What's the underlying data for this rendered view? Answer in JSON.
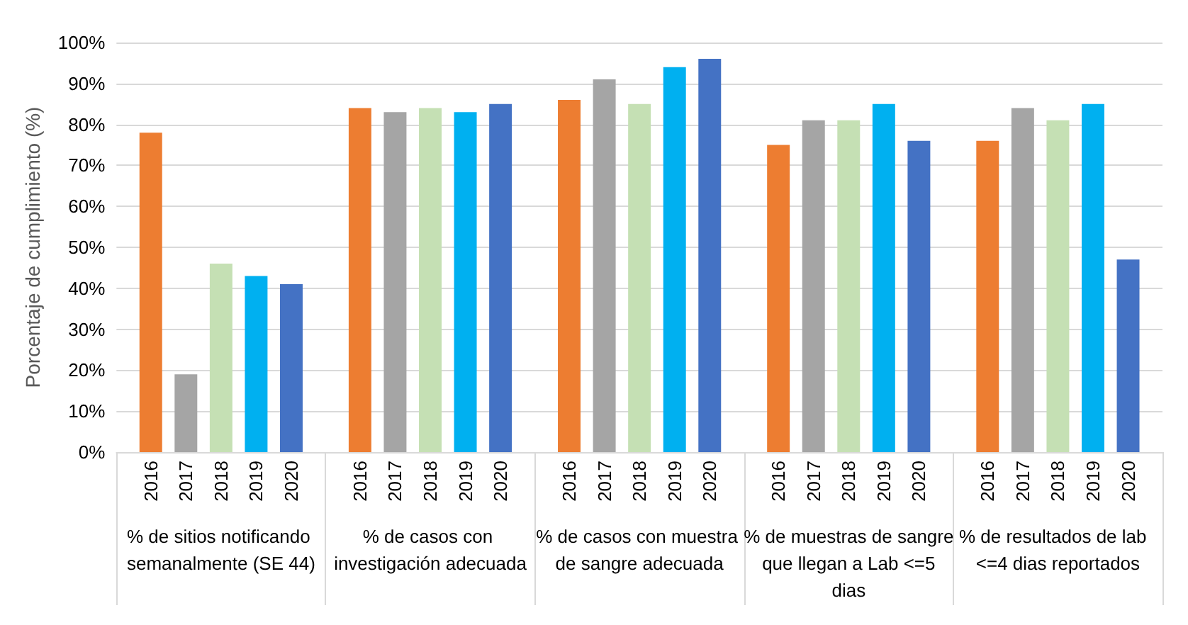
{
  "chart_data": {
    "type": "bar",
    "ylabel": "Porcentaje de cumplimiento (%)",
    "categories": [
      "% de sitios notificando semanalmente (SE 44)",
      "% de casos con investigación adecuada",
      "% de casos con muestra de sangre adecuada",
      "% de muestras de sangre que llegan a Lab <=5 dias",
      "% de resultados de lab  <=4 dias reportados"
    ],
    "series": [
      {
        "name": "2016",
        "color": "#ed7d31",
        "values": [
          78,
          84,
          86,
          75,
          76
        ]
      },
      {
        "name": "2017",
        "color": "#a5a5a5",
        "values": [
          19,
          83,
          91,
          81,
          84
        ]
      },
      {
        "name": "2018",
        "color": "#c5e0b4",
        "values": [
          46,
          84,
          85,
          81,
          81
        ]
      },
      {
        "name": "2019",
        "color": "#00b0f0",
        "values": [
          43,
          83,
          94,
          85,
          85
        ]
      },
      {
        "name": "2020",
        "color": "#4472c4",
        "values": [
          41,
          85,
          96,
          76,
          47
        ]
      }
    ],
    "ylim": [
      0,
      100
    ],
    "yticks": [
      {
        "value": 0,
        "label": "0%"
      },
      {
        "value": 10,
        "label": "10%"
      },
      {
        "value": 20,
        "label": "20%"
      },
      {
        "value": 30,
        "label": "30%"
      },
      {
        "value": 40,
        "label": "40%"
      },
      {
        "value": 50,
        "label": "50%"
      },
      {
        "value": 60,
        "label": "60%"
      },
      {
        "value": 70,
        "label": "70%"
      },
      {
        "value": 80,
        "label": "80%"
      },
      {
        "value": 90,
        "label": "90%"
      },
      {
        "value": 100,
        "label": "100%"
      }
    ],
    "grid": "y",
    "legend": false
  }
}
